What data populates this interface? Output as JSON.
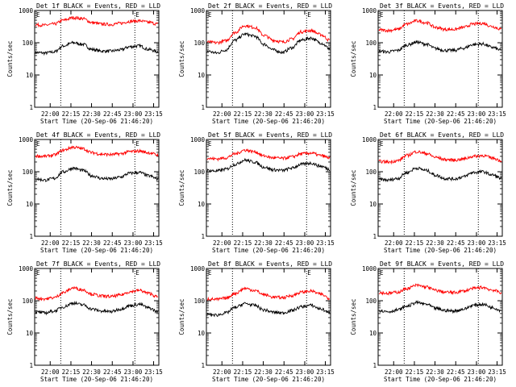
{
  "figure": {
    "y_axis_label": "Counts/sec",
    "x_axis_label": "Start Time (20-Sep-06 21:46:20)",
    "x_tick_labels": [
      "22:00",
      "22:15",
      "22:30",
      "22:45",
      "23:00",
      "23:15"
    ],
    "y_tick_labels": [
      "1000",
      "100",
      "10",
      "1"
    ],
    "marker_label": "E"
  },
  "chart_data": [
    {
      "type": "line",
      "title": "Det 1f BLACK = Events, RED = LLD",
      "x_labels": [
        "22:00",
        "22:15",
        "22:30",
        "22:45",
        "23:00",
        "23:15"
      ],
      "y_scale": "log",
      "ylim": [
        1,
        1000
      ],
      "ylabel": "Counts/sec",
      "xlabel": "",
      "markers": [
        "E",
        "E"
      ],
      "series": [
        {
          "name": "BLACK = Events",
          "color": "#000000",
          "values": [
            50,
            48,
            52,
            80,
            100,
            90,
            62,
            55,
            55,
            60,
            75,
            80,
            62,
            52
          ]
        },
        {
          "name": "RED = LLD",
          "color": "#ff0000",
          "values": [
            360,
            350,
            380,
            500,
            600,
            560,
            420,
            380,
            370,
            400,
            460,
            480,
            430,
            380
          ]
        }
      ]
    },
    {
      "type": "line",
      "title": "Det 2f BLACK = Events, RED = LLD",
      "x_labels": [
        "22:00",
        "22:15",
        "22:30",
        "22:45",
        "23:00",
        "23:15"
      ],
      "y_scale": "log",
      "ylim": [
        1,
        1000
      ],
      "ylabel": "Counts/sec",
      "xlabel": "",
      "markers": [
        "E",
        "E"
      ],
      "series": [
        {
          "name": "BLACK = Events",
          "color": "#000000",
          "values": [
            55,
            48,
            60,
            120,
            185,
            160,
            90,
            60,
            50,
            70,
            120,
            140,
            100,
            65
          ]
        },
        {
          "name": "RED = LLD",
          "color": "#ff0000",
          "values": [
            105,
            100,
            115,
            210,
            340,
            300,
            170,
            120,
            105,
            130,
            220,
            240,
            180,
            120
          ]
        }
      ]
    },
    {
      "type": "line",
      "title": "Det 3f BLACK = Events, RED = LLD",
      "x_labels": [
        "22:00",
        "22:15",
        "22:30",
        "22:45",
        "23:00",
        "23:15"
      ],
      "y_scale": "log",
      "ylim": [
        1,
        1000
      ],
      "ylabel": "Counts/sec",
      "xlabel": "",
      "markers": [
        "E"
      ],
      "series": [
        {
          "name": "BLACK = Events",
          "color": "#000000",
          "values": [
            55,
            52,
            58,
            85,
            105,
            90,
            66,
            58,
            58,
            68,
            88,
            92,
            72,
            58
          ]
        },
        {
          "name": "RED = LLD",
          "color": "#ff0000",
          "values": [
            250,
            240,
            260,
            380,
            480,
            420,
            300,
            260,
            260,
            300,
            380,
            400,
            320,
            260
          ]
        }
      ]
    },
    {
      "type": "line",
      "title": "Det 4f BLACK = Events, RED = LLD",
      "x_labels": [
        "22:00",
        "22:15",
        "22:30",
        "22:45",
        "23:00",
        "23:15"
      ],
      "y_scale": "log",
      "ylim": [
        1,
        1000
      ],
      "ylabel": "Counts/sec",
      "xlabel": "",
      "markers": [
        "E",
        "E"
      ],
      "series": [
        {
          "name": "BLACK = Events",
          "color": "#000000",
          "values": [
            60,
            55,
            62,
            100,
            130,
            110,
            75,
            62,
            60,
            68,
            90,
            95,
            75,
            60
          ]
        },
        {
          "name": "RED = LLD",
          "color": "#ff0000",
          "values": [
            310,
            300,
            330,
            470,
            580,
            520,
            390,
            350,
            340,
            360,
            420,
            440,
            390,
            330
          ]
        }
      ]
    },
    {
      "type": "line",
      "title": "Det 5f BLACK = Events, RED = LLD",
      "x_labels": [
        "22:00",
        "22:15",
        "22:30",
        "22:45",
        "23:00",
        "23:15"
      ],
      "y_scale": "log",
      "ylim": [
        1,
        1000
      ],
      "ylabel": "Counts/sec",
      "xlabel": "",
      "markers": [
        "E"
      ],
      "series": [
        {
          "name": "BLACK = Events",
          "color": "#000000",
          "values": [
            110,
            105,
            120,
            170,
            230,
            200,
            140,
            115,
            110,
            130,
            170,
            185,
            150,
            120
          ]
        },
        {
          "name": "RED = LLD",
          "color": "#ff0000",
          "values": [
            260,
            250,
            270,
            360,
            470,
            420,
            310,
            270,
            260,
            290,
            360,
            380,
            320,
            270
          ]
        }
      ]
    },
    {
      "type": "line",
      "title": "Det 6f BLACK = Events, RED = LLD",
      "x_labels": [
        "22:00",
        "22:15",
        "22:30",
        "22:45",
        "23:00",
        "23:15"
      ],
      "y_scale": "log",
      "ylim": [
        1,
        1000
      ],
      "ylabel": "Counts/sec",
      "xlabel": "",
      "markers": [
        "E"
      ],
      "series": [
        {
          "name": "BLACK = Events",
          "color": "#000000",
          "values": [
            58,
            55,
            62,
            95,
            130,
            110,
            78,
            62,
            60,
            70,
            95,
            100,
            80,
            62
          ]
        },
        {
          "name": "RED = LLD",
          "color": "#ff0000",
          "values": [
            210,
            200,
            220,
            320,
            420,
            370,
            280,
            240,
            230,
            250,
            300,
            320,
            270,
            220
          ]
        }
      ]
    },
    {
      "type": "line",
      "title": "Det 7f BLACK = Events, RED = LLD",
      "x_labels": [
        "22:00",
        "22:15",
        "22:30",
        "22:45",
        "23:00",
        "23:15"
      ],
      "y_scale": "log",
      "ylim": [
        1,
        1000
      ],
      "ylabel": "Counts/sec",
      "xlabel": "Start Time (20-Sep-06 21:46:20)",
      "markers": [
        "E",
        "E"
      ],
      "series": [
        {
          "name": "BLACK = Events",
          "color": "#000000",
          "values": [
            45,
            42,
            48,
            65,
            85,
            75,
            55,
            48,
            46,
            55,
            70,
            78,
            60,
            45
          ]
        },
        {
          "name": "RED = LLD",
          "color": "#ff0000",
          "values": [
            120,
            115,
            125,
            180,
            250,
            220,
            160,
            140,
            135,
            150,
            190,
            210,
            170,
            130
          ]
        }
      ]
    },
    {
      "type": "line",
      "title": "Det 8f BLACK = Events, RED = LLD",
      "x_labels": [
        "22:00",
        "22:15",
        "22:30",
        "22:45",
        "23:00",
        "23:15"
      ],
      "y_scale": "log",
      "ylim": [
        1,
        1000
      ],
      "ylabel": "Counts/sec",
      "xlabel": "Start Time (20-Sep-06 21:46:20)",
      "markers": [
        "E",
        "E"
      ],
      "series": [
        {
          "name": "BLACK = Events",
          "color": "#000000",
          "values": [
            38,
            36,
            42,
            62,
            82,
            72,
            52,
            44,
            42,
            50,
            65,
            72,
            56,
            42
          ]
        },
        {
          "name": "RED = LLD",
          "color": "#ff0000",
          "values": [
            115,
            110,
            120,
            170,
            240,
            210,
            155,
            130,
            125,
            145,
            185,
            200,
            160,
            120
          ]
        }
      ]
    },
    {
      "type": "line",
      "title": "Det 9f BLACK = Events, RED = LLD",
      "x_labels": [
        "22:00",
        "22:15",
        "22:30",
        "22:45",
        "23:00",
        "23:15"
      ],
      "y_scale": "log",
      "ylim": [
        1,
        1000
      ],
      "ylabel": "Counts/sec",
      "xlabel": "Start Time (20-Sep-06 21:46:20)",
      "markers": [
        "E"
      ],
      "series": [
        {
          "name": "BLACK = Events",
          "color": "#000000",
          "values": [
            50,
            46,
            52,
            68,
            88,
            78,
            58,
            50,
            48,
            55,
            72,
            78,
            62,
            50
          ]
        },
        {
          "name": "RED = LLD",
          "color": "#ff0000",
          "values": [
            180,
            170,
            185,
            240,
            300,
            270,
            210,
            185,
            180,
            200,
            240,
            260,
            215,
            180
          ]
        }
      ]
    }
  ]
}
